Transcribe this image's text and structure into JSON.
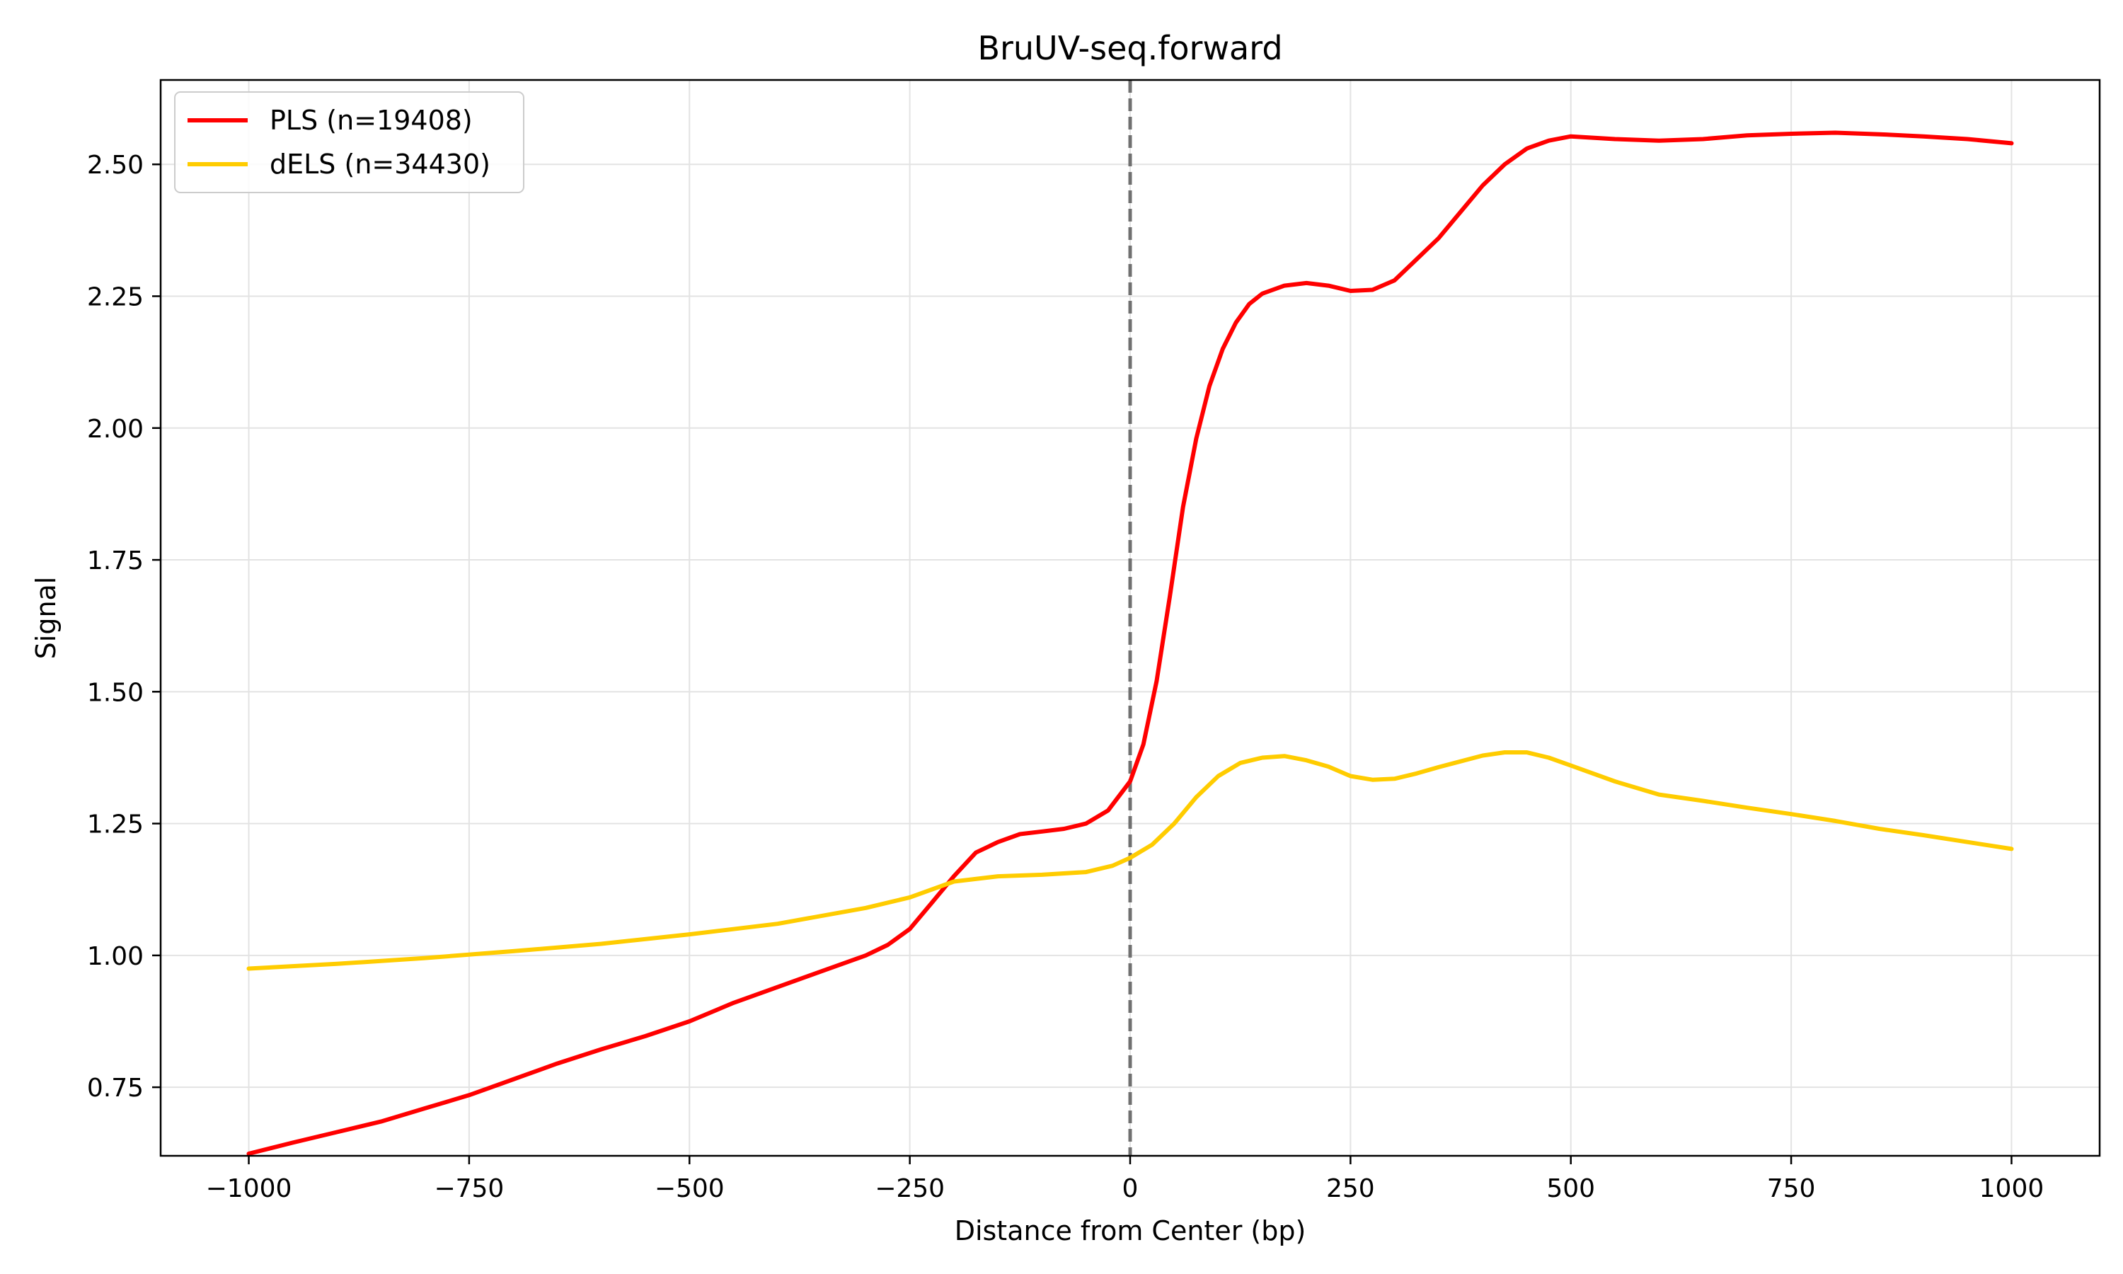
{
  "chart_data": {
    "type": "line",
    "title": "BruUV-seq.forward",
    "xlabel": "Distance from Center (bp)",
    "ylabel": "Signal",
    "xlim": [
      -1100,
      1100
    ],
    "ylim": [
      0.62,
      2.66
    ],
    "x_ticks": [
      -1000,
      -750,
      -500,
      -250,
      0,
      250,
      500,
      750,
      1000
    ],
    "x_tick_labels": [
      "−1000",
      "−750",
      "−500",
      "−250",
      "0",
      "250",
      "500",
      "750",
      "1000"
    ],
    "y_ticks": [
      0.75,
      1.0,
      1.25,
      1.5,
      1.75,
      2.0,
      2.25,
      2.5
    ],
    "y_tick_labels": [
      "0.75",
      "1.00",
      "1.25",
      "1.50",
      "1.75",
      "2.00",
      "2.25",
      "2.50"
    ],
    "grid": true,
    "legend_position": "top-left",
    "vline": {
      "x": 0,
      "style": "dashed",
      "color": "#707070"
    },
    "series": [
      {
        "name": "PLS (n=19408)",
        "color": "#ff0000",
        "points": [
          [
            -1000,
            0.624
          ],
          [
            -950,
            0.645
          ],
          [
            -900,
            0.665
          ],
          [
            -850,
            0.685
          ],
          [
            -800,
            0.71
          ],
          [
            -750,
            0.735
          ],
          [
            -700,
            0.765
          ],
          [
            -650,
            0.795
          ],
          [
            -600,
            0.822
          ],
          [
            -550,
            0.847
          ],
          [
            -500,
            0.875
          ],
          [
            -450,
            0.91
          ],
          [
            -400,
            0.94
          ],
          [
            -350,
            0.97
          ],
          [
            -300,
            1.0
          ],
          [
            -275,
            1.02
          ],
          [
            -250,
            1.05
          ],
          [
            -225,
            1.1
          ],
          [
            -200,
            1.15
          ],
          [
            -175,
            1.195
          ],
          [
            -150,
            1.215
          ],
          [
            -125,
            1.23
          ],
          [
            -100,
            1.235
          ],
          [
            -75,
            1.24
          ],
          [
            -50,
            1.25
          ],
          [
            -25,
            1.275
          ],
          [
            0,
            1.33
          ],
          [
            15,
            1.4
          ],
          [
            30,
            1.52
          ],
          [
            45,
            1.68
          ],
          [
            60,
            1.85
          ],
          [
            75,
            1.98
          ],
          [
            90,
            2.08
          ],
          [
            105,
            2.15
          ],
          [
            120,
            2.2
          ],
          [
            135,
            2.235
          ],
          [
            150,
            2.255
          ],
          [
            175,
            2.27
          ],
          [
            200,
            2.275
          ],
          [
            225,
            2.27
          ],
          [
            250,
            2.26
          ],
          [
            275,
            2.262
          ],
          [
            300,
            2.28
          ],
          [
            325,
            2.32
          ],
          [
            350,
            2.36
          ],
          [
            375,
            2.41
          ],
          [
            400,
            2.46
          ],
          [
            425,
            2.5
          ],
          [
            450,
            2.53
          ],
          [
            475,
            2.545
          ],
          [
            500,
            2.553
          ],
          [
            550,
            2.548
          ],
          [
            600,
            2.545
          ],
          [
            650,
            2.548
          ],
          [
            700,
            2.555
          ],
          [
            750,
            2.558
          ],
          [
            800,
            2.56
          ],
          [
            850,
            2.557
          ],
          [
            900,
            2.553
          ],
          [
            950,
            2.548
          ],
          [
            1000,
            2.54
          ]
        ]
      },
      {
        "name": "dELS (n=34430)",
        "color": "#ffcc00",
        "points": [
          [
            -1000,
            0.975
          ],
          [
            -900,
            0.984
          ],
          [
            -800,
            0.995
          ],
          [
            -700,
            1.008
          ],
          [
            -600,
            1.022
          ],
          [
            -500,
            1.04
          ],
          [
            -400,
            1.06
          ],
          [
            -300,
            1.09
          ],
          [
            -250,
            1.11
          ],
          [
            -200,
            1.14
          ],
          [
            -150,
            1.15
          ],
          [
            -100,
            1.153
          ],
          [
            -50,
            1.158
          ],
          [
            -20,
            1.17
          ],
          [
            0,
            1.185
          ],
          [
            25,
            1.21
          ],
          [
            50,
            1.25
          ],
          [
            75,
            1.3
          ],
          [
            100,
            1.34
          ],
          [
            125,
            1.365
          ],
          [
            150,
            1.375
          ],
          [
            175,
            1.378
          ],
          [
            200,
            1.37
          ],
          [
            225,
            1.358
          ],
          [
            250,
            1.34
          ],
          [
            275,
            1.333
          ],
          [
            300,
            1.335
          ],
          [
            325,
            1.345
          ],
          [
            350,
            1.357
          ],
          [
            375,
            1.368
          ],
          [
            400,
            1.379
          ],
          [
            425,
            1.385
          ],
          [
            450,
            1.385
          ],
          [
            475,
            1.375
          ],
          [
            500,
            1.36
          ],
          [
            550,
            1.33
          ],
          [
            600,
            1.305
          ],
          [
            650,
            1.293
          ],
          [
            700,
            1.28
          ],
          [
            750,
            1.268
          ],
          [
            800,
            1.255
          ],
          [
            850,
            1.24
          ],
          [
            900,
            1.228
          ],
          [
            950,
            1.215
          ],
          [
            1000,
            1.202
          ]
        ]
      }
    ]
  }
}
